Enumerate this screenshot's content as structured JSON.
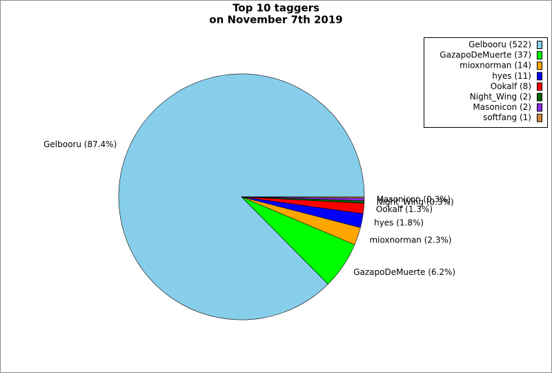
{
  "chart_data": {
    "type": "pie",
    "title": "Top 10 taggers",
    "subtitle": "on November 7th 2019",
    "values": [
      522,
      37,
      14,
      11,
      8,
      2,
      2,
      1
    ],
    "legend_labels": [
      "Gelbooru (522)",
      "GazapoDeMuerte (37)",
      "mioxnorman (14)",
      "hyes (11)",
      "Ookalf (8)",
      "Night_Wing (2)",
      "Masonicon (2)",
      "softfang (1)"
    ],
    "value_labels": [
      "Gelbooru (87.4%)",
      "GazapoDeMuerte (6.2%)",
      "mioxnorman (2.3%)",
      "hyes (1.8%)",
      "Ookalf (1.3%)",
      "Night_Wing (0.3%)",
      "Masonicon (0.3%)",
      null
    ],
    "colors": [
      "#87ceeb",
      "#00ff00",
      "#ffa500",
      "#0000ff",
      "#ff0000",
      "#006400",
      "#8a2be2",
      "#cd853f"
    ],
    "legend_position": "upper right"
  }
}
